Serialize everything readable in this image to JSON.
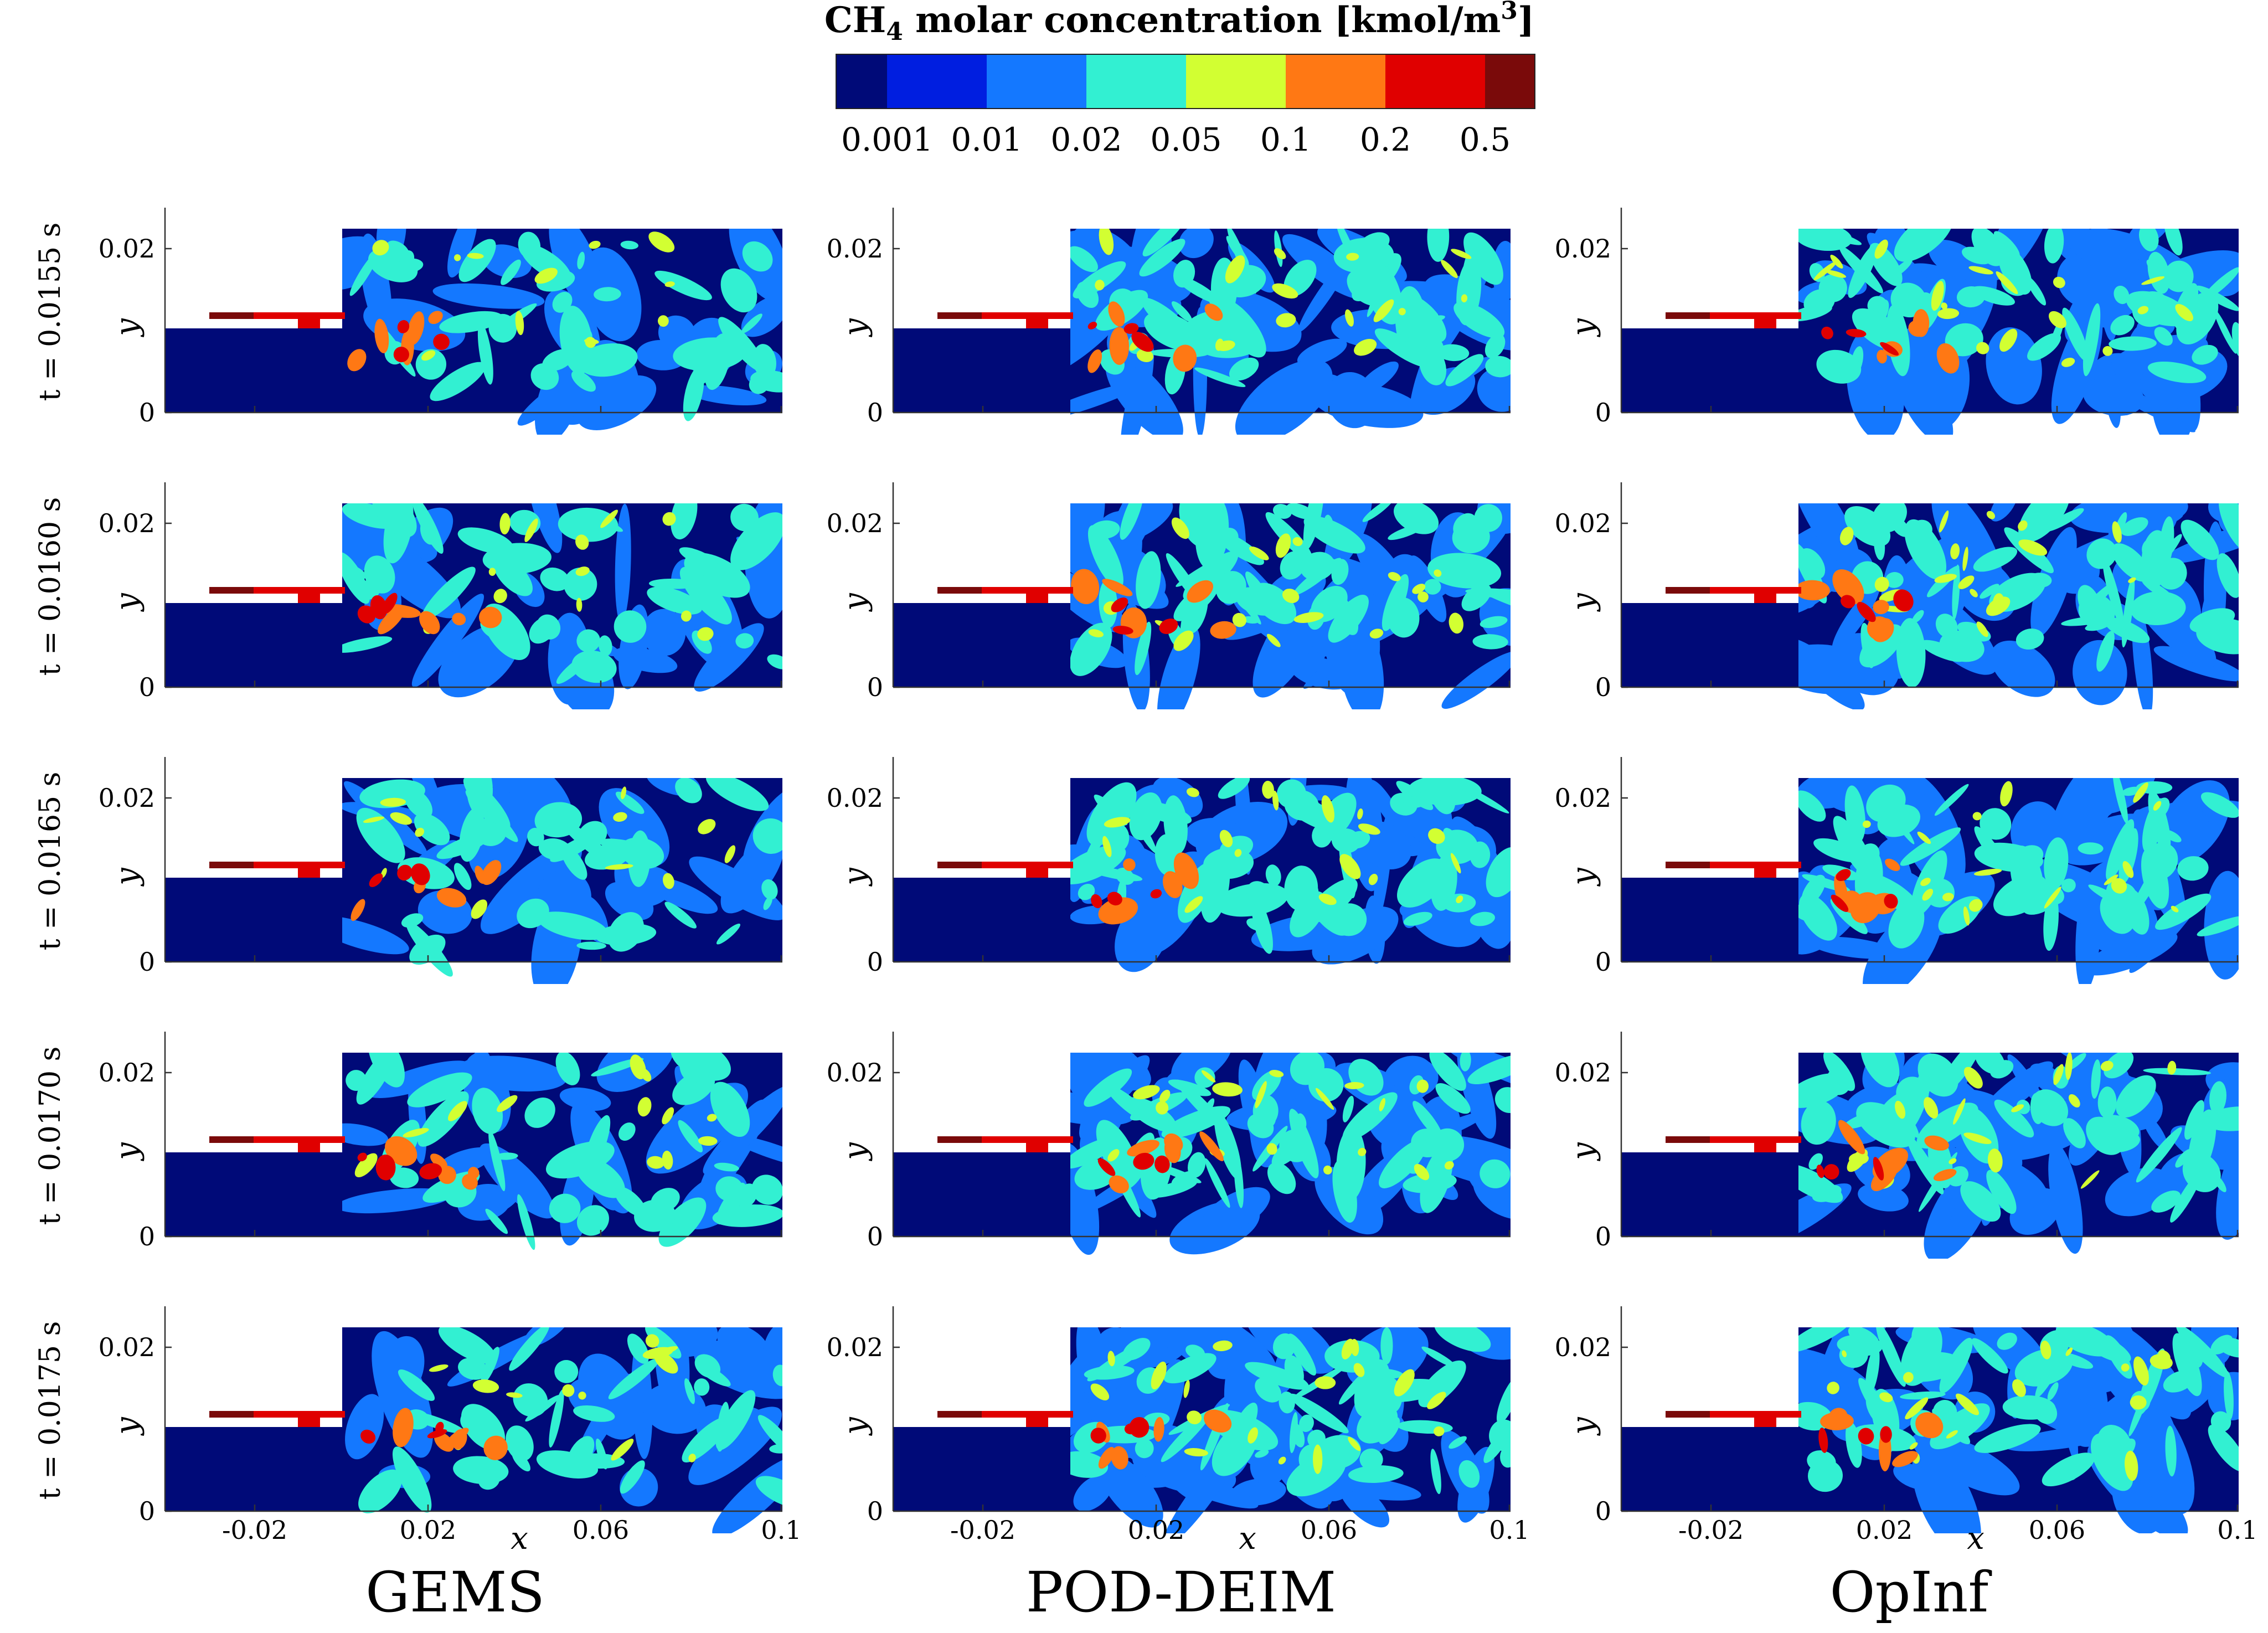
{
  "colorbar": {
    "title": "CH4 molar concentration [kmol/m3]",
    "title_parts": {
      "pre": "CH",
      "sub": "4",
      "mid": " molar concentration [kmol/m",
      "sup": "3",
      "post": "]"
    },
    "colors": [
      "#000a78",
      "#001ee0",
      "#1478ff",
      "#32f0d2",
      "#d2ff32",
      "#ff7814",
      "#e00000",
      "#7a0a0a"
    ],
    "ticks": [
      "0.001",
      "0.01",
      "0.02",
      "0.05",
      "0.1",
      "0.2",
      "0.5"
    ]
  },
  "columns": [
    "GEMS",
    "POD-DEIM",
    "OpInf"
  ],
  "rows": [
    "t = 0.0155 s",
    "t = 0.0160 s",
    "t = 0.0165 s",
    "t = 0.0170 s",
    "t = 0.0175 s"
  ],
  "axes": {
    "xlabel": "x",
    "ylabel": "y",
    "xticks": [
      "-0.02",
      "0.02",
      "0.06",
      "0.1"
    ],
    "yticks": [
      "0.02",
      "0"
    ]
  },
  "field_colors": {
    "background": "#000a78",
    "mid": "#1478ff",
    "cyan": "#32f0d2",
    "yellow": "#d2ff32",
    "orange": "#ff7814",
    "red": "#e00000",
    "darkred": "#7a0a0a"
  }
}
